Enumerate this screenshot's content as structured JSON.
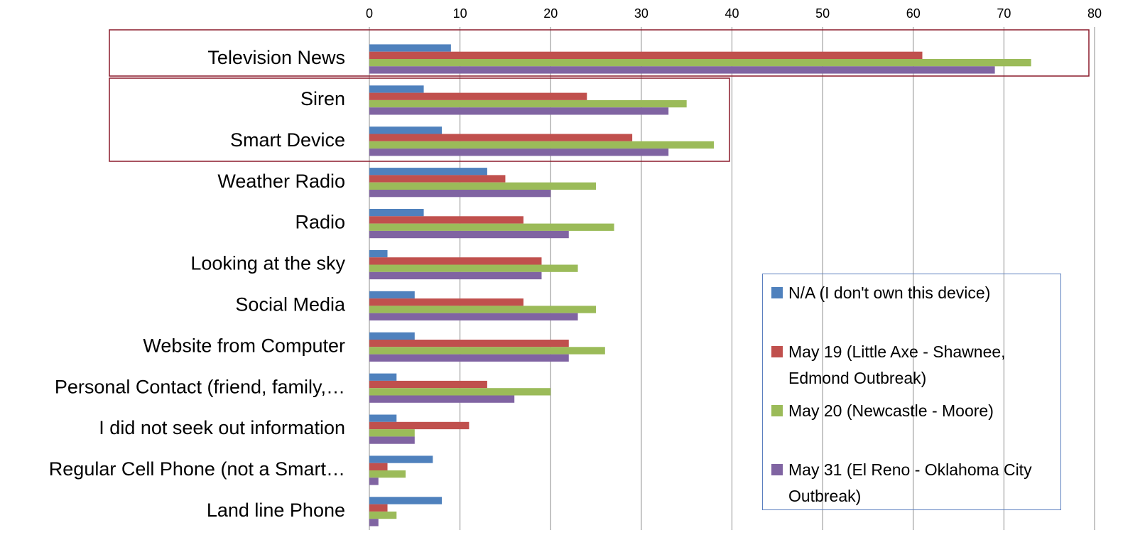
{
  "chart_data": {
    "type": "bar",
    "orientation": "horizontal",
    "categories": [
      "Television News",
      "Siren",
      "Smart Device",
      "Weather Radio",
      "Radio",
      "Looking at the sky",
      "Social Media",
      "Website from Computer",
      "Personal Contact (friend, family,…",
      "I did not seek out information",
      "Regular Cell Phone (not a Smart…",
      "Land line Phone"
    ],
    "series": [
      {
        "name": "N/A (I don't own this device)",
        "color": "#4f81bd",
        "values": [
          9,
          6,
          8,
          13,
          6,
          2,
          5,
          5,
          3,
          3,
          7,
          8
        ]
      },
      {
        "name": "May 19 (Little Axe - Shawnee, Edmond Outbreak)",
        "color": "#c0504d",
        "values": [
          61,
          24,
          29,
          15,
          17,
          19,
          17,
          22,
          13,
          11,
          2,
          2
        ]
      },
      {
        "name": "May 20 (Newcastle - Moore)",
        "color": "#9bbb59",
        "values": [
          73,
          35,
          38,
          25,
          27,
          23,
          25,
          26,
          20,
          5,
          4,
          3
        ]
      },
      {
        "name": "May 31 (El Reno - Oklahoma City Outbreak)",
        "color": "#8064a2",
        "values": [
          69,
          33,
          33,
          20,
          22,
          19,
          23,
          22,
          16,
          5,
          1,
          1
        ]
      }
    ],
    "xlim": [
      0,
      80
    ],
    "xticks": [
      0,
      10,
      20,
      30,
      40,
      50,
      60,
      70,
      80
    ],
    "grid": true,
    "legend": "right"
  }
}
